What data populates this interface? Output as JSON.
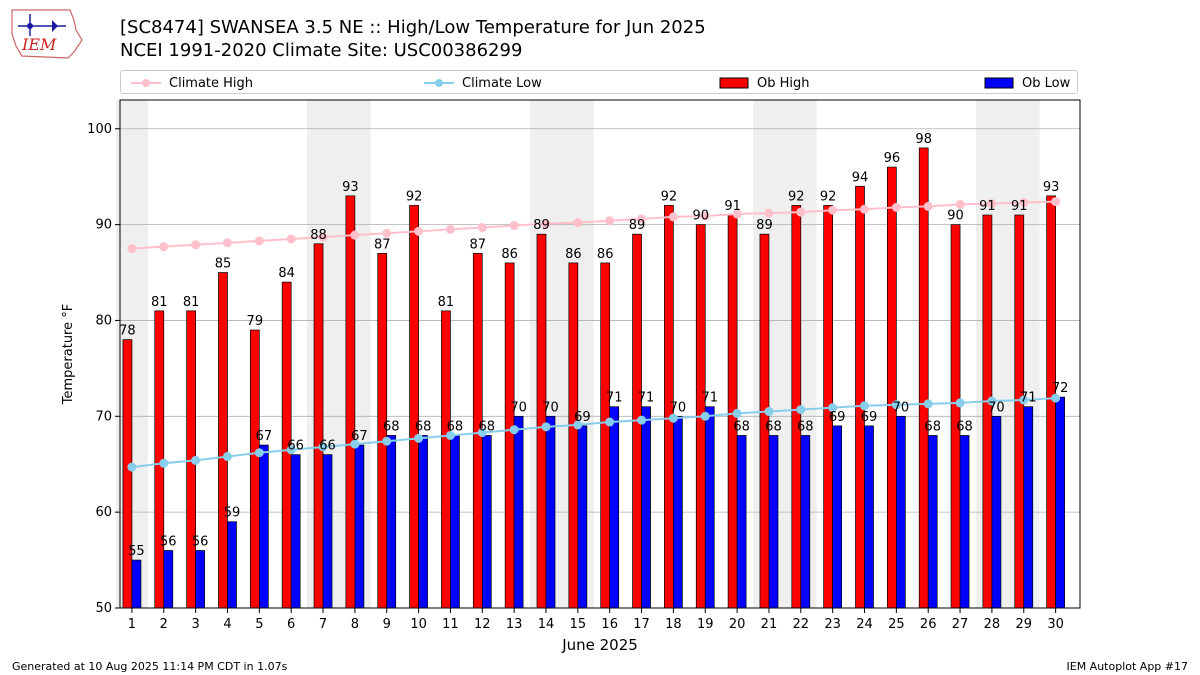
{
  "title_line1": "[SC8474] SWANSEA 3.5 NE :: High/Low Temperature for Jun 2025",
  "title_line2": "NCEI 1991-2020 Climate Site: USC00386299",
  "logo_text": "IEM",
  "footer_left": "Generated at 10 Aug 2025 11:14 PM CDT in 1.07s",
  "footer_right": "IEM Autoplot App #17",
  "colors": {
    "ob_high": "#ff0000",
    "ob_low": "#0000ff",
    "climate_high": "#ffc0cb",
    "climate_low": "#87ceeb",
    "weekend_band": "#efefef",
    "grid": "#b0b0b0"
  },
  "chart_data": {
    "type": "bar",
    "xlabel": "June 2025",
    "ylabel": "Temperature °F",
    "ylim": [
      50,
      103
    ],
    "yticks": [
      50,
      60,
      70,
      80,
      90,
      100
    ],
    "grid": "horizontal",
    "legend_placement": "top",
    "categories": [
      "1",
      "2",
      "3",
      "4",
      "5",
      "6",
      "7",
      "8",
      "9",
      "10",
      "11",
      "12",
      "13",
      "14",
      "15",
      "16",
      "17",
      "18",
      "19",
      "20",
      "21",
      "22",
      "23",
      "24",
      "25",
      "26",
      "27",
      "28",
      "29",
      "30"
    ],
    "shaded_days": [
      1,
      7,
      8,
      14,
      15,
      21,
      22,
      28,
      29
    ],
    "series": [
      {
        "name": "Ob High",
        "kind": "bar",
        "values": [
          78,
          81,
          81,
          85,
          79,
          84,
          88,
          93,
          87,
          92,
          81,
          87,
          86,
          89,
          86,
          86,
          89,
          92,
          90,
          91,
          89,
          92,
          92,
          94,
          96,
          98,
          90,
          91,
          91,
          93
        ]
      },
      {
        "name": "Ob Low",
        "kind": "bar",
        "values": [
          55,
          56,
          56,
          59,
          67,
          66,
          66,
          67,
          68,
          68,
          68,
          68,
          70,
          70,
          69,
          71,
          71,
          70,
          71,
          68,
          68,
          68,
          69,
          69,
          70,
          68,
          68,
          70,
          71,
          72
        ]
      },
      {
        "name": "Climate High",
        "kind": "line",
        "values": [
          87.5,
          87.7,
          87.9,
          88.1,
          88.3,
          88.5,
          88.7,
          88.9,
          89.1,
          89.3,
          89.5,
          89.7,
          89.9,
          90.1,
          90.2,
          90.4,
          90.6,
          90.8,
          90.9,
          91.1,
          91.2,
          91.3,
          91.5,
          91.6,
          91.8,
          91.9,
          92.1,
          92.2,
          92.3,
          92.4
        ]
      },
      {
        "name": "Climate Low",
        "kind": "line",
        "values": [
          64.7,
          65.1,
          65.4,
          65.8,
          66.2,
          66.5,
          66.8,
          67.1,
          67.4,
          67.7,
          68.0,
          68.3,
          68.6,
          68.9,
          69.1,
          69.4,
          69.6,
          69.8,
          70.0,
          70.3,
          70.5,
          70.7,
          70.9,
          71.1,
          71.2,
          71.3,
          71.4,
          71.6,
          71.7,
          71.9
        ]
      }
    ]
  }
}
